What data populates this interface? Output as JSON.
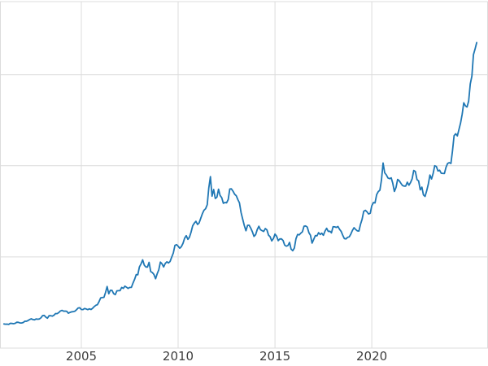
{
  "chart_data": {
    "type": "line",
    "title": "",
    "xlabel": "",
    "ylabel": "",
    "legend": "none",
    "grid": true,
    "x_tick_labels": [
      "2005",
      "2010",
      "2015",
      "2020"
    ],
    "x_tick_years": [
      2005,
      2010,
      2015,
      2020
    ],
    "y_gridline_values": [
      0,
      1000,
      2000,
      3000
    ],
    "xlim": [
      2000.8,
      2026.0
    ],
    "ylim": [
      0,
      3800
    ],
    "line_color": "#1f77b4",
    "grid_color": "#dcdcdc",
    "tick_label_color": "#3d3d3d",
    "background_color": "#ffffff",
    "x_start": 2001.0,
    "x_step": 0.0833333,
    "values": [
      265,
      262,
      263,
      260,
      272,
      270,
      268,
      272,
      284,
      283,
      276,
      276,
      281,
      295,
      294,
      302,
      314,
      321,
      313,
      310,
      319,
      317,
      319,
      333,
      357,
      359,
      340,
      328,
      355,
      356,
      351,
      360,
      379,
      378,
      389,
      407,
      414,
      405,
      406,
      403,
      383,
      392,
      398,
      400,
      405,
      420,
      439,
      442,
      424,
      423,
      434,
      429,
      422,
      431,
      424,
      437,
      456,
      470,
      476,
      510,
      550,
      555,
      557,
      611,
      675,
      596,
      634,
      633,
      598,
      586,
      628,
      630,
      631,
      665,
      655,
      680,
      667,
      655,
      665,
      665,
      713,
      755,
      806,
      804,
      890,
      923,
      968,
      910,
      889,
      889,
      940,
      839,
      829,
      807,
      761,
      816,
      858,
      943,
      924,
      890,
      929,
      946,
      934,
      950,
      997,
      1043,
      1127,
      1135,
      1118,
      1095,
      1113,
      1149,
      1205,
      1233,
      1193,
      1216,
      1271,
      1342,
      1370,
      1391,
      1356,
      1373,
      1424,
      1474,
      1512,
      1529,
      1573,
      1756,
      1880,
      1666,
      1739,
      1641,
      1656,
      1743,
      1674,
      1650,
      1589,
      1597,
      1594,
      1630,
      1745,
      1747,
      1721,
      1688,
      1671,
      1628,
      1593,
      1487,
      1414,
      1343,
      1287,
      1347,
      1348,
      1316,
      1276,
      1225,
      1244,
      1301,
      1336,
      1299,
      1288,
      1279,
      1311,
      1296,
      1238,
      1222,
      1176,
      1201,
      1251,
      1227,
      1178,
      1197,
      1198,
      1181,
      1130,
      1118,
      1125,
      1159,
      1086,
      1068,
      1097,
      1200,
      1246,
      1242,
      1260,
      1276,
      1337,
      1340,
      1327,
      1266,
      1238,
      1152,
      1192,
      1234,
      1231,
      1266,
      1246,
      1260,
      1237,
      1283,
      1314,
      1280,
      1282,
      1264,
      1331,
      1330,
      1324,
      1334,
      1303,
      1281,
      1238,
      1201,
      1198,
      1215,
      1220,
      1250,
      1291,
      1320,
      1301,
      1286,
      1284,
      1359,
      1413,
      1500,
      1511,
      1495,
      1471,
      1479,
      1560,
      1597,
      1592,
      1683,
      1716,
      1732,
      1843,
      2030,
      1922,
      1900,
      1866,
      1858,
      1867,
      1808,
      1718,
      1762,
      1850,
      1835,
      1807,
      1784,
      1777,
      1777,
      1820,
      1787,
      1816,
      1856,
      1948,
      1937,
      1848,
      1834,
      1736,
      1765,
      1681,
      1664,
      1725,
      1797,
      1898,
      1855,
      1913,
      2000,
      1992,
      1943,
      1951,
      1918,
      1916,
      1915,
      1984,
      2026,
      2034,
      2025,
      2160,
      2330,
      2351,
      2327,
      2398,
      2470,
      2568,
      2690,
      2657,
      2644,
      2708,
      2897,
      2983,
      3218,
      3280,
      3350
    ]
  }
}
